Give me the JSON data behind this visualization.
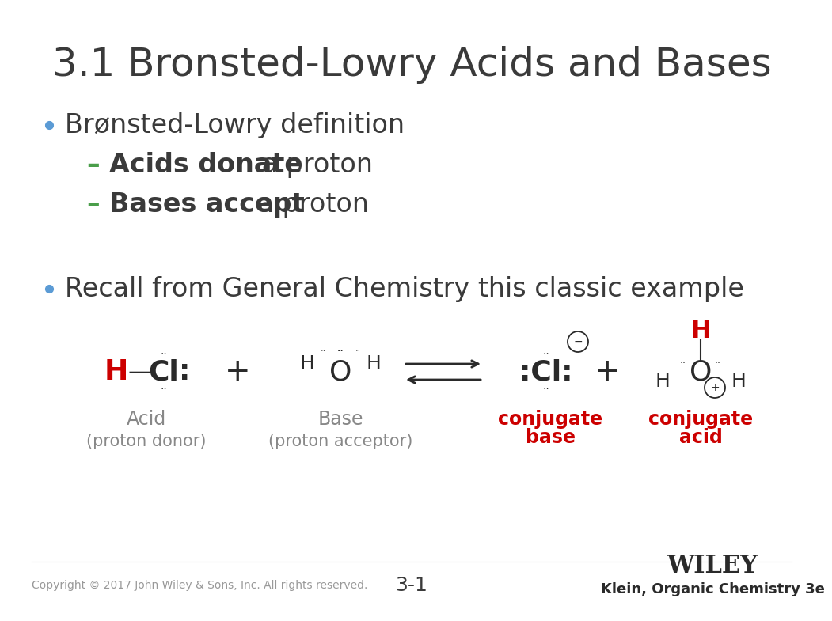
{
  "title": "3.1 Bronsted-Lowry Acids and Bases",
  "title_fontsize": 36,
  "title_color": "#3a3a3a",
  "bg_color": "#ffffff",
  "bullet1": "Brønsted-Lowry definition",
  "bullet1_color": "#3a3a3a",
  "bullet1_fontsize": 24,
  "sub1_bold": "Acids donate",
  "sub1_rest": " a proton",
  "sub2_bold": "Bases accept",
  "sub2_rest": " a proton",
  "sub_fontsize": 24,
  "sub_color": "#3a3a3a",
  "sub_bold_color": "#3a3a3a",
  "dash_color": "#4a9e4a",
  "bullet2": "Recall from General Chemistry this classic example",
  "bullet2_color": "#3a3a3a",
  "bullet2_fontsize": 24,
  "red_color": "#cc0000",
  "label_color": "#888888",
  "conj_color": "#cc0000",
  "footer_copy": "Copyright © 2017 John Wiley & Sons, Inc. All rights reserved.",
  "footer_page": "3-1",
  "footer_book": "Klein, Organic Chemistry 3e",
  "footer_wiley": "WILEY",
  "footer_fontsize": 10,
  "bullet_dot_color": "#5b9bd5",
  "dark_color": "#2a2a2a"
}
